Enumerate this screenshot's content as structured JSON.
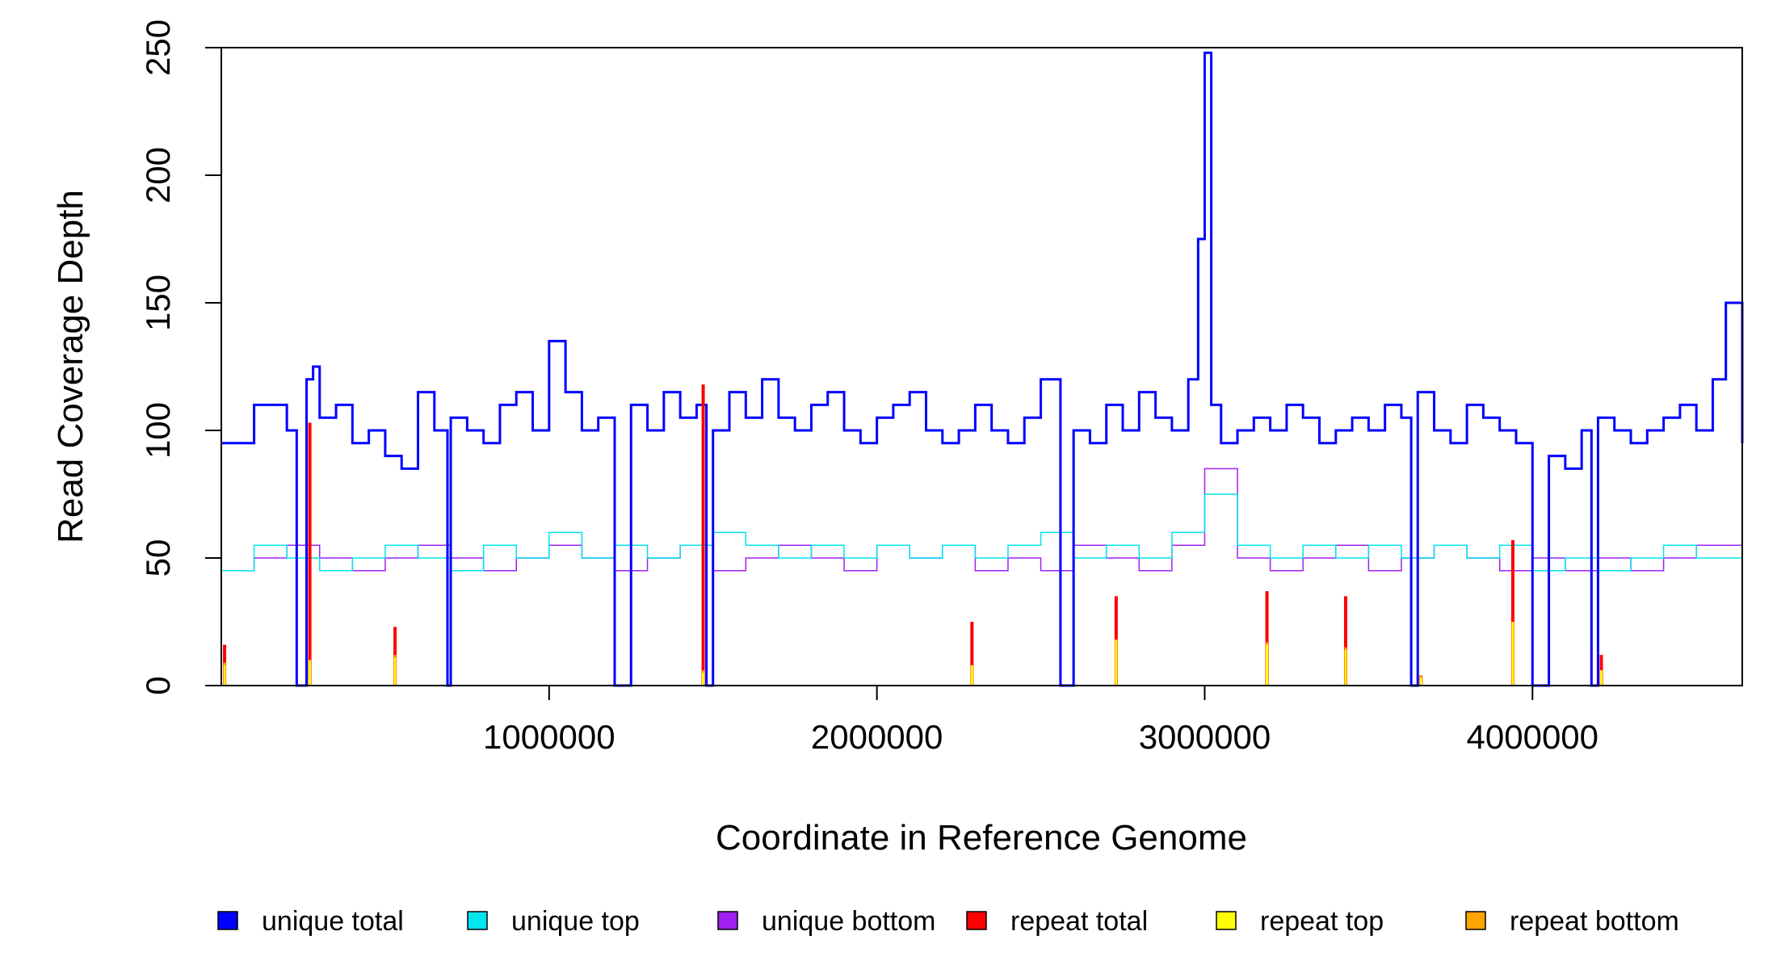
{
  "chart_data": {
    "type": "line",
    "title": "",
    "xlabel": "Coordinate in Reference Genome",
    "ylabel": "Read Coverage Depth",
    "xlim": [
      0,
      4640000
    ],
    "ylim": [
      0,
      250
    ],
    "x_ticks": [
      1000000,
      2000000,
      3000000,
      4000000
    ],
    "x_tick_labels": [
      "1000000",
      "2000000",
      "3000000",
      "4000000"
    ],
    "y_ticks": [
      0,
      50,
      100,
      150,
      200,
      250
    ],
    "y_tick_labels": [
      "0",
      "50",
      "100",
      "150",
      "200",
      "250"
    ],
    "grid": false,
    "legend_position": "bottom",
    "colors": {
      "unique_total": "#0000ff",
      "unique_top": "#00e5ee",
      "unique_bottom": "#a020f0",
      "repeat_total": "#ff0000",
      "repeat_top": "#ffff00",
      "repeat_bottom": "#ffa500"
    },
    "legend": [
      {
        "key": "unique_total",
        "label": "unique total"
      },
      {
        "key": "unique_top",
        "label": "unique top"
      },
      {
        "key": "unique_bottom",
        "label": "unique bottom"
      },
      {
        "key": "repeat_total",
        "label": "repeat total"
      },
      {
        "key": "repeat_top",
        "label": "repeat top"
      },
      {
        "key": "repeat_bottom",
        "label": "repeat bottom"
      }
    ],
    "series": [
      {
        "name": "unique total",
        "key": "unique_total",
        "x": [
          0,
          100000,
          200000,
          230000,
          260000,
          280000,
          300000,
          350000,
          400000,
          450000,
          500000,
          550000,
          600000,
          650000,
          690000,
          700000,
          750000,
          800000,
          850000,
          900000,
          950000,
          1000000,
          1050000,
          1100000,
          1150000,
          1200000,
          1250000,
          1300000,
          1350000,
          1400000,
          1450000,
          1480000,
          1500000,
          1550000,
          1600000,
          1650000,
          1700000,
          1750000,
          1800000,
          1850000,
          1900000,
          1950000,
          2000000,
          2050000,
          2100000,
          2150000,
          2200000,
          2250000,
          2300000,
          2350000,
          2400000,
          2450000,
          2500000,
          2560000,
          2600000,
          2650000,
          2700000,
          2750000,
          2800000,
          2850000,
          2900000,
          2950000,
          2980000,
          3000000,
          3020000,
          3050000,
          3100000,
          3150000,
          3200000,
          3250000,
          3300000,
          3350000,
          3400000,
          3450000,
          3500000,
          3550000,
          3600000,
          3630000,
          3650000,
          3700000,
          3750000,
          3800000,
          3850000,
          3900000,
          3950000,
          4000000,
          4050000,
          4100000,
          4150000,
          4180000,
          4200000,
          4250000,
          4300000,
          4350000,
          4400000,
          4450000,
          4500000,
          4550000,
          4590000,
          4640000
        ],
        "y": [
          95,
          110,
          100,
          0,
          120,
          125,
          105,
          110,
          95,
          100,
          90,
          85,
          115,
          100,
          0,
          105,
          100,
          95,
          110,
          115,
          100,
          135,
          115,
          100,
          105,
          0,
          110,
          100,
          115,
          105,
          110,
          0,
          100,
          115,
          105,
          120,
          105,
          100,
          110,
          115,
          100,
          95,
          105,
          110,
          115,
          100,
          95,
          100,
          110,
          100,
          95,
          105,
          120,
          0,
          100,
          95,
          110,
          100,
          115,
          105,
          100,
          120,
          175,
          248,
          110,
          95,
          100,
          105,
          100,
          110,
          105,
          95,
          100,
          105,
          100,
          110,
          105,
          0,
          115,
          100,
          95,
          110,
          105,
          100,
          95,
          0,
          90,
          85,
          100,
          0,
          105,
          100,
          95,
          100,
          105,
          110,
          100,
          120,
          150,
          95
        ]
      },
      {
        "name": "unique top",
        "key": "unique_top",
        "x": [
          0,
          100000,
          200000,
          300000,
          400000,
          500000,
          600000,
          700000,
          800000,
          900000,
          1000000,
          1100000,
          1200000,
          1300000,
          1400000,
          1500000,
          1600000,
          1700000,
          1800000,
          1900000,
          2000000,
          2100000,
          2200000,
          2300000,
          2400000,
          2500000,
          2600000,
          2700000,
          2800000,
          2900000,
          3000000,
          3100000,
          3200000,
          3300000,
          3400000,
          3500000,
          3600000,
          3700000,
          3800000,
          3900000,
          4000000,
          4100000,
          4200000,
          4300000,
          4400000,
          4500000,
          4640000
        ],
        "y": [
          45,
          55,
          50,
          45,
          50,
          55,
          50,
          45,
          55,
          50,
          60,
          50,
          55,
          50,
          55,
          60,
          55,
          50,
          55,
          50,
          55,
          50,
          55,
          50,
          55,
          60,
          50,
          55,
          50,
          60,
          75,
          55,
          50,
          55,
          50,
          55,
          50,
          55,
          50,
          55,
          45,
          50,
          45,
          50,
          55,
          50,
          55
        ]
      },
      {
        "name": "unique bottom",
        "key": "unique_bottom",
        "x": [
          0,
          100000,
          200000,
          300000,
          400000,
          500000,
          600000,
          700000,
          800000,
          900000,
          1000000,
          1100000,
          1200000,
          1300000,
          1400000,
          1500000,
          1600000,
          1700000,
          1800000,
          1900000,
          2000000,
          2100000,
          2200000,
          2300000,
          2400000,
          2500000,
          2600000,
          2700000,
          2800000,
          2900000,
          3000000,
          3100000,
          3200000,
          3300000,
          3400000,
          3500000,
          3600000,
          3700000,
          3800000,
          3900000,
          4000000,
          4100000,
          4200000,
          4300000,
          4400000,
          4500000,
          4640000
        ],
        "y": [
          45,
          50,
          55,
          50,
          45,
          50,
          55,
          50,
          45,
          50,
          55,
          50,
          45,
          50,
          55,
          45,
          50,
          55,
          50,
          45,
          55,
          50,
          55,
          45,
          50,
          45,
          55,
          50,
          45,
          55,
          85,
          50,
          45,
          50,
          55,
          45,
          50,
          55,
          50,
          45,
          50,
          45,
          50,
          45,
          50,
          55,
          50
        ]
      },
      {
        "name": "repeat total",
        "key": "repeat_total",
        "x": [
          10000,
          270000,
          530000,
          1470000,
          2290000,
          2730000,
          3190000,
          3430000,
          3660000,
          3940000,
          4210000
        ],
        "y": [
          16,
          103,
          23,
          118,
          25,
          35,
          37,
          35,
          4,
          57,
          12
        ]
      },
      {
        "name": "repeat top",
        "key": "repeat_top",
        "x": [
          10000,
          270000,
          530000,
          1470000,
          2290000,
          2730000,
          3190000,
          3430000,
          3660000,
          3940000,
          4210000
        ],
        "y": [
          8,
          10,
          11,
          5,
          8,
          18,
          16,
          14,
          3,
          25,
          6
        ]
      },
      {
        "name": "repeat bottom",
        "key": "repeat_bottom",
        "x": [
          10000,
          270000,
          530000,
          1470000,
          2290000,
          2730000,
          3190000,
          3430000,
          3660000,
          3940000,
          4210000
        ],
        "y": [
          9,
          8,
          12,
          6,
          7,
          17,
          17,
          15,
          4,
          24,
          5
        ]
      }
    ]
  }
}
